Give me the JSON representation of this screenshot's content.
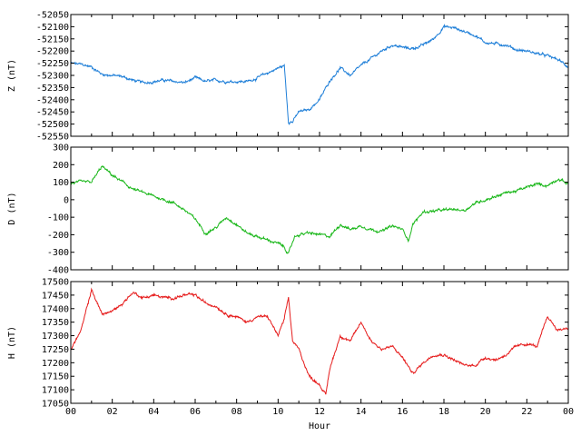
{
  "chart_data": [
    {
      "type": "line",
      "ylabel": "Z (nT)",
      "ylim": [
        -52550,
        -52050
      ],
      "yticks": [
        -52050,
        -52100,
        -52150,
        -52200,
        -52250,
        -52300,
        -52350,
        -52400,
        -52450,
        -52500,
        -52550
      ],
      "color": "#1f7fd8",
      "x": [
        0,
        0.5,
        1,
        1.5,
        2,
        2.5,
        3,
        3.5,
        4,
        4.5,
        5,
        5.5,
        6,
        6.5,
        7,
        7.5,
        8,
        8.5,
        9,
        9.5,
        10,
        10.3,
        10.5,
        10.7,
        11,
        11.5,
        12,
        12.5,
        13,
        13.5,
        14,
        14.5,
        15,
        15.5,
        16,
        16.5,
        17,
        17.5,
        18,
        18.5,
        19,
        19.5,
        20,
        20.5,
        21,
        21.5,
        22,
        22.5,
        23,
        23.5,
        24
      ],
      "values": [
        -52250,
        -52255,
        -52265,
        -52295,
        -52300,
        -52305,
        -52320,
        -52330,
        -52325,
        -52320,
        -52325,
        -52330,
        -52310,
        -52325,
        -52320,
        -52325,
        -52325,
        -52325,
        -52310,
        -52290,
        -52270,
        -52260,
        -52490,
        -52490,
        -52450,
        -52440,
        -52400,
        -52320,
        -52270,
        -52300,
        -52260,
        -52230,
        -52200,
        -52175,
        -52185,
        -52190,
        -52175,
        -52150,
        -52100,
        -52105,
        -52120,
        -52135,
        -52165,
        -52170,
        -52175,
        -52195,
        -52200,
        -52210,
        -52220,
        -52235,
        -52265
      ]
    },
    {
      "type": "line",
      "ylabel": "D (nT)",
      "ylim": [
        -400,
        300
      ],
      "yticks": [
        300,
        200,
        100,
        0,
        -100,
        -200,
        -300,
        -400
      ],
      "color": "#1cb81c",
      "x": [
        0,
        0.5,
        1,
        1.5,
        2,
        2.5,
        3,
        3.5,
        4,
        4.5,
        5,
        5.5,
        6,
        6.5,
        7,
        7.5,
        8,
        8.5,
        9,
        9.5,
        10,
        10.3,
        10.5,
        10.8,
        11,
        11.5,
        12,
        12.5,
        13,
        13.5,
        14,
        14.5,
        15,
        15.5,
        16,
        16.3,
        16.5,
        17,
        17.5,
        18,
        18.5,
        19,
        19.5,
        20,
        20.5,
        21,
        21.5,
        22,
        22.5,
        23,
        23.5,
        24
      ],
      "values": [
        95,
        100,
        100,
        190,
        140,
        100,
        60,
        40,
        20,
        0,
        -20,
        -60,
        -110,
        -190,
        -160,
        -100,
        -140,
        -190,
        -210,
        -230,
        -250,
        -270,
        -310,
        -210,
        -200,
        -190,
        -200,
        -210,
        -140,
        -170,
        -150,
        -170,
        -180,
        -150,
        -170,
        -230,
        -140,
        -70,
        -65,
        -60,
        -55,
        -60,
        -20,
        0,
        20,
        40,
        50,
        70,
        90,
        80,
        120,
        90
      ]
    },
    {
      "type": "line",
      "ylabel": "H (nT)",
      "xlabel": "Hour",
      "ylim": [
        17050,
        17500
      ],
      "yticks": [
        17500,
        17450,
        17400,
        17350,
        17300,
        17250,
        17200,
        17150,
        17100,
        17050
      ],
      "xlim": [
        0,
        24
      ],
      "xtick_labels": [
        "00",
        "02",
        "04",
        "06",
        "08",
        "10",
        "12",
        "14",
        "16",
        "18",
        "20",
        "22",
        "00"
      ],
      "color": "#e61c1c",
      "x": [
        0,
        0.5,
        1,
        1.5,
        2,
        2.5,
        3,
        3.5,
        4,
        4.5,
        5,
        5.5,
        6,
        6.5,
        7,
        7.5,
        8,
        8.5,
        9,
        9.5,
        10,
        10.3,
        10.5,
        10.7,
        11,
        11.5,
        12,
        12.3,
        12.5,
        13,
        13.5,
        14,
        14.5,
        15,
        15.5,
        16,
        16.5,
        17,
        17.5,
        18,
        18.5,
        19,
        19.5,
        20,
        20.5,
        21,
        21.5,
        22,
        22.5,
        23,
        23.5,
        24
      ],
      "values": [
        17250,
        17320,
        17470,
        17380,
        17390,
        17420,
        17460,
        17440,
        17450,
        17440,
        17440,
        17450,
        17450,
        17420,
        17410,
        17380,
        17370,
        17350,
        17370,
        17370,
        17300,
        17360,
        17440,
        17280,
        17250,
        17150,
        17120,
        17080,
        17180,
        17300,
        17280,
        17350,
        17280,
        17250,
        17260,
        17220,
        17160,
        17200,
        17230,
        17230,
        17210,
        17190,
        17190,
        17220,
        17210,
        17230,
        17260,
        17270,
        17260,
        17370,
        17320,
        17330
      ]
    }
  ]
}
